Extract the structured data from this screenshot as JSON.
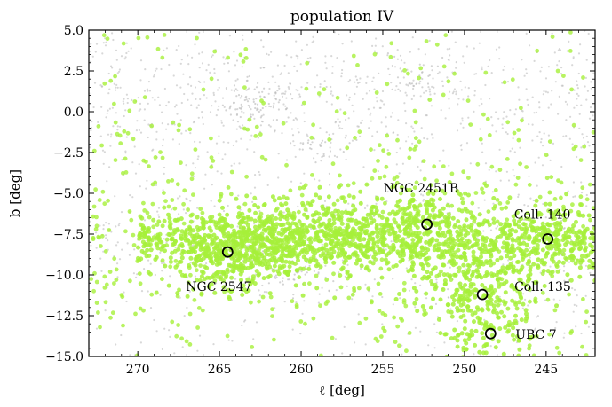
{
  "chart_data": {
    "type": "scatter",
    "title": "population IV",
    "xlabel": "ℓ [deg]",
    "ylabel": "b [deg]",
    "xlim": [
      273,
      242
    ],
    "ylim": [
      -15,
      5
    ],
    "x_ticks": [
      270,
      265,
      260,
      255,
      250,
      245
    ],
    "x_tick_labels": [
      "270",
      "265",
      "260",
      "255",
      "250",
      "245"
    ],
    "y_ticks": [
      5.0,
      2.5,
      0.0,
      -2.5,
      -5.0,
      -7.5,
      -10.0,
      -12.5,
      -15.0
    ],
    "y_tick_labels": [
      "5.0",
      "2.5",
      "0.0",
      "−2.5",
      "−5.0",
      "−7.5",
      "−10.0",
      "−12.5",
      "−15.0"
    ],
    "x_reversed": true,
    "grid": false,
    "colors": {
      "background_stars": "#b8b8b8",
      "population_stars": "#a6f03a",
      "cluster_marker_edge": "#000000"
    },
    "series": [
      {
        "role": "background",
        "color": "#b8b8b8",
        "note_density": "diffuse field stars across full range, concentrated near b=0 and along b=-7.5",
        "approx_clumps": [
          {
            "l": 263.0,
            "b": 0.6,
            "weight": 0.12
          },
          {
            "l": 253.0,
            "b": 2.2,
            "weight": 0.05
          },
          {
            "l": 258.5,
            "b": -1.8,
            "weight": 0.05
          },
          {
            "l": 262.5,
            "b": -8.0,
            "weight": 0.06
          },
          {
            "l": 260.0,
            "b": -10.2,
            "weight": 0.06
          }
        ]
      },
      {
        "role": "population IV",
        "color": "#a6f03a",
        "approx_clumps": [
          {
            "l": 264.5,
            "b": -8.6,
            "weight": 0.18
          },
          {
            "l": 261.0,
            "b": -8.0,
            "weight": 0.16
          },
          {
            "l": 257.0,
            "b": -7.6,
            "weight": 0.1
          },
          {
            "l": 252.3,
            "b": -6.9,
            "weight": 0.12
          },
          {
            "l": 249.5,
            "b": -10.5,
            "weight": 0.14
          },
          {
            "l": 248.6,
            "b": -13.2,
            "weight": 0.08
          },
          {
            "l": 245.0,
            "b": -7.9,
            "weight": 0.1
          }
        ]
      }
    ],
    "clusters": [
      {
        "name": "NGC 2547",
        "l": 264.5,
        "b": -8.6
      },
      {
        "name": "NGC 2451B",
        "l": 252.3,
        "b": -6.9
      },
      {
        "name": "Coll. 140",
        "l": 244.9,
        "b": -7.8
      },
      {
        "name": "Coll. 135",
        "l": 248.9,
        "b": -11.2
      },
      {
        "name": "UBC 7",
        "l": 248.4,
        "b": -13.6
      }
    ]
  }
}
